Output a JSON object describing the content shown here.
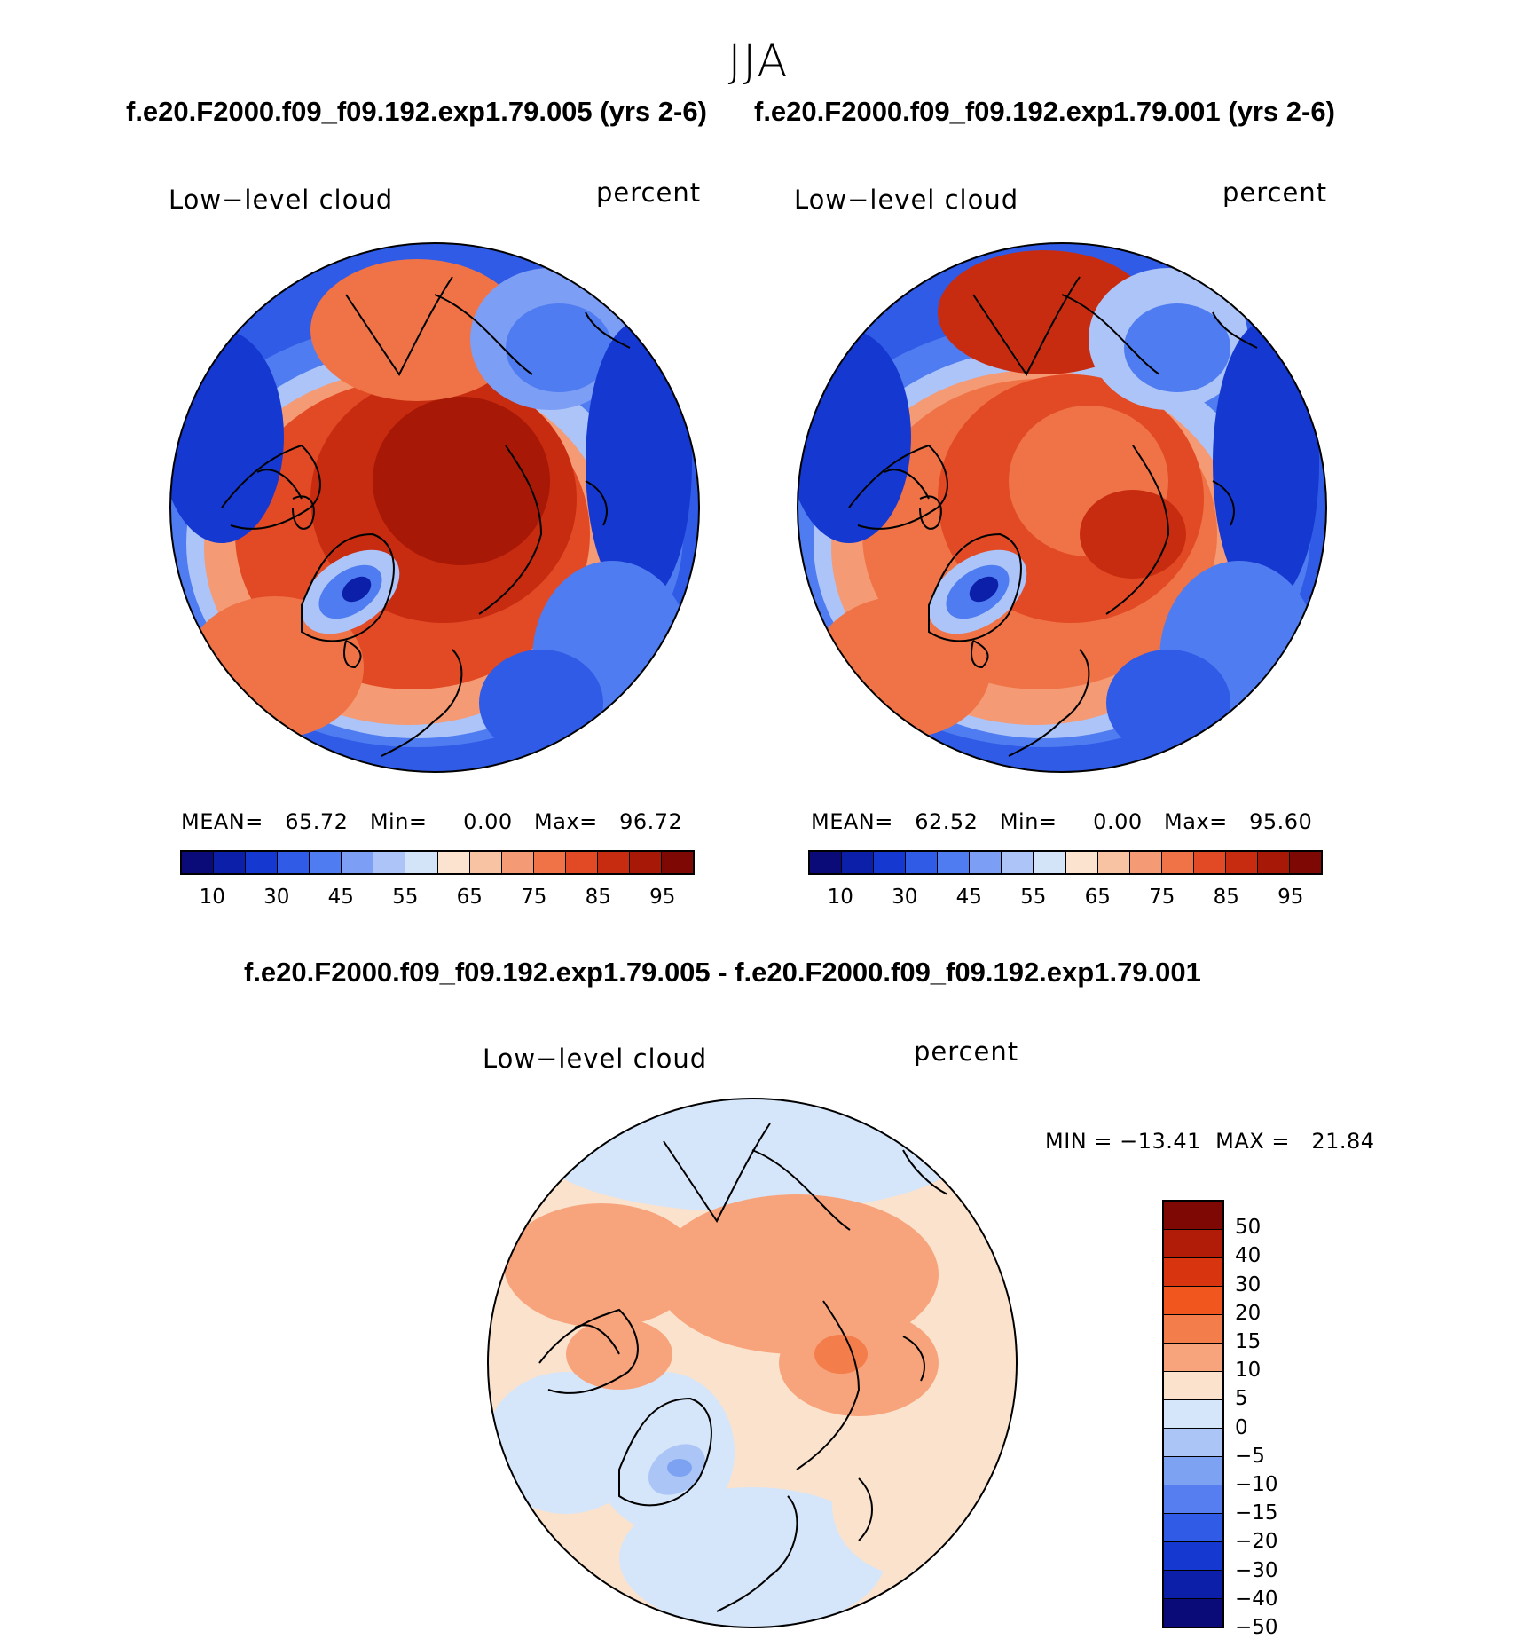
{
  "figure": {
    "season": "JJA",
    "case_a": "f.e20.F2000.f09_f09.192.exp1.79.005 (yrs 2-6)",
    "case_b": "f.e20.F2000.f09_f09.192.exp1.79.001 (yrs 2-6)",
    "diff_title": "f.e20.F2000.f09_f09.192.exp1.79.005 - f.e20.F2000.f09_f09.192.exp1.79.001"
  },
  "panels": [
    {
      "variable": "Low−level cloud",
      "units": "percent",
      "stats": "MEAN=   65.72   Min=     0.00   Max=   96.72"
    },
    {
      "variable": "Low−level cloud",
      "units": "percent",
      "stats": "MEAN=   62.52   Min=     0.00   Max=   95.60"
    }
  ],
  "diff_panel": {
    "variable": "Low−level cloud",
    "units": "percent",
    "stats": "MIN = −13.41  MAX =   21.84"
  },
  "colorbar_main": {
    "colors": [
      "#0a0a78",
      "#0c1fa8",
      "#1538d0",
      "#2f5be6",
      "#4f7cf0",
      "#7d9ef5",
      "#acc4f7",
      "#d4e4f8",
      "#fbe3d0",
      "#f8c3a3",
      "#f49a74",
      "#ef7346",
      "#e24a25",
      "#c82c10",
      "#a81807",
      "#7e0804"
    ],
    "labels": [
      "10",
      "30",
      "45",
      "55",
      "65",
      "75",
      "85",
      "95"
    ]
  },
  "colorbar_diff": {
    "colors": [
      "#7e0804",
      "#b01c08",
      "#d83410",
      "#f0561e",
      "#f47d4c",
      "#f7a47c",
      "#fbe2cc",
      "#d5e6fa",
      "#abc6f6",
      "#7ea2f2",
      "#567ef0",
      "#2f5be6",
      "#1538d0",
      "#0c1fa8",
      "#0a0a78"
    ],
    "labels": [
      "50",
      "40",
      "30",
      "20",
      "15",
      "10",
      "5",
      "0",
      "−5",
      "−10",
      "−15",
      "−20",
      "−30",
      "−40",
      "−50"
    ]
  }
}
